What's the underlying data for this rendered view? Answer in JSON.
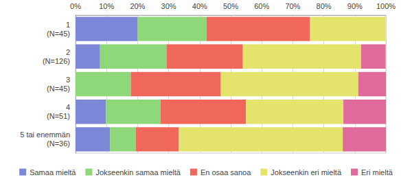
{
  "chart_data": {
    "type": "bar",
    "orientation": "horizontal",
    "stacked": true,
    "grid": true,
    "legend": "bottom",
    "categories": [
      "1\n(N=45)",
      "2\n(N=126)",
      "3\n(N=45)",
      "4\n(N=51)",
      "5 tai enemmän\n(N=36)"
    ],
    "xlim": [
      0,
      100
    ],
    "xticks": [
      {
        "value": 0,
        "label": "0%"
      },
      {
        "value": 10,
        "label": "10%"
      },
      {
        "value": 20,
        "label": "20%"
      },
      {
        "value": 30,
        "label": "30%"
      },
      {
        "value": 40,
        "label": "40%"
      },
      {
        "value": 50,
        "label": "50%"
      },
      {
        "value": 60,
        "label": "60%"
      },
      {
        "value": 70,
        "label": "70%"
      },
      {
        "value": 80,
        "label": "80%"
      },
      {
        "value": 90,
        "label": "90%"
      },
      {
        "value": 100,
        "label": "100%"
      }
    ],
    "series": [
      {
        "name": "Samaa mieltä",
        "color": "#7c87d8",
        "values": [
          20.0,
          7.9,
          0,
          9.8,
          11.1
        ]
      },
      {
        "name": "Jokseenkin samaa mieltä",
        "color": "#8fd87a",
        "values": [
          22.2,
          21.4,
          17.8,
          17.6,
          8.3
        ]
      },
      {
        "name": "En osaa sanoa",
        "color": "#f0685b",
        "values": [
          33.3,
          24.6,
          28.9,
          27.5,
          13.9
        ]
      },
      {
        "name": "Jokseenkin eri mieltä",
        "color": "#e4e46c",
        "values": [
          24.4,
          38.1,
          44.4,
          31.4,
          52.8
        ]
      },
      {
        "name": "Eri mieltä",
        "color": "#e06a9b",
        "values": [
          0,
          7.9,
          8.9,
          13.7,
          13.9
        ]
      }
    ]
  }
}
